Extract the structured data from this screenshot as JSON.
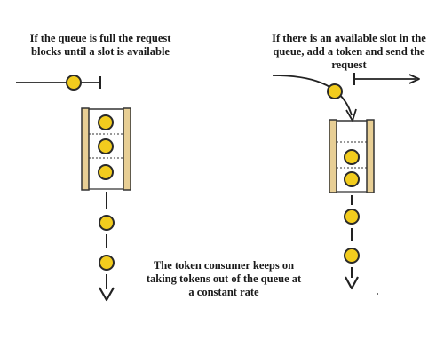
{
  "captions": {
    "blocked": [
      "If the queue is full the request",
      "blocks until a slot is available"
    ],
    "available": [
      "If there is an available slot in the",
      "queue, add a token and send the",
      "request"
    ],
    "consumer": [
      "The token consumer keeps on",
      "taking tokens out of the queue at",
      "a constant rate"
    ]
  },
  "colors": {
    "token": "#f2cc1e",
    "token_outline": "#2a2a2a",
    "rail": "#e8cf95",
    "ink": "#222222"
  }
}
